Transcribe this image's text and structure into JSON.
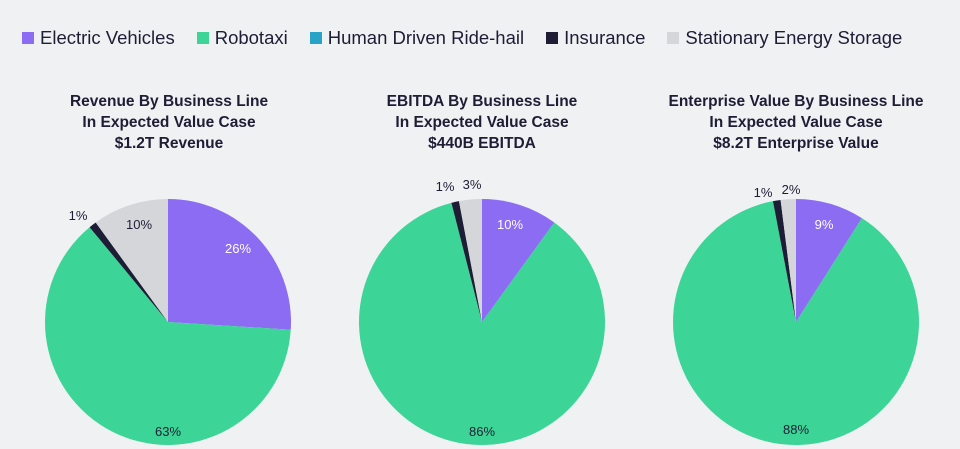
{
  "legend": [
    {
      "label": "Electric Vehicles",
      "color": "#8b6cf2"
    },
    {
      "label": "Robotaxi",
      "color": "#3dd597"
    },
    {
      "label": "Human Driven Ride-hail",
      "color": "#27a3c8"
    },
    {
      "label": "Insurance",
      "color": "#1d1d35"
    },
    {
      "label": "Stationary Energy Storage",
      "color": "#d5d6d9"
    }
  ],
  "chart_data": [
    {
      "type": "pie",
      "title": [
        "Revenue By Business Line",
        "In Expected Value Case",
        "$1.2T Revenue"
      ],
      "slices": [
        {
          "name": "Electric Vehicles",
          "value": 26,
          "label": "26%"
        },
        {
          "name": "Robotaxi",
          "value": 63,
          "label": "63%"
        },
        {
          "name": "Insurance",
          "value": 1,
          "label": "1%"
        },
        {
          "name": "Stationary Energy Storage",
          "value": 10,
          "label": "10%"
        }
      ]
    },
    {
      "type": "pie",
      "title": [
        "EBITDA By Business Line",
        "In Expected Value Case",
        "$440B EBITDA"
      ],
      "slices": [
        {
          "name": "Electric Vehicles",
          "value": 10,
          "label": "10%"
        },
        {
          "name": "Robotaxi",
          "value": 86,
          "label": "86%"
        },
        {
          "name": "Insurance",
          "value": 1,
          "label": "1%"
        },
        {
          "name": "Stationary Energy Storage",
          "value": 3,
          "label": "3%"
        }
      ]
    },
    {
      "type": "pie",
      "title": [
        "Enterprise Value By Business Line",
        "In Expected Value Case",
        "$8.2T Enterprise Value"
      ],
      "slices": [
        {
          "name": "Electric Vehicles",
          "value": 9,
          "label": "9%"
        },
        {
          "name": "Robotaxi",
          "value": 88,
          "label": "88%"
        },
        {
          "name": "Insurance",
          "value": 1,
          "label": "1%"
        },
        {
          "name": "Stationary Energy Storage",
          "value": 2,
          "label": "2%"
        }
      ]
    }
  ]
}
